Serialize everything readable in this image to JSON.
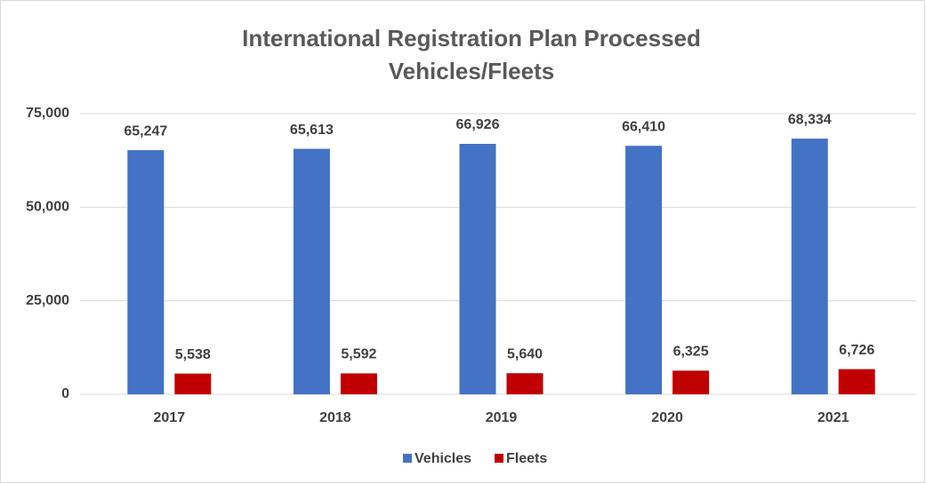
{
  "chart_data": {
    "type": "bar",
    "title": [
      "International Registration Plan Processed",
      "Vehicles/Fleets"
    ],
    "categories": [
      "2017",
      "2018",
      "2019",
      "2020",
      "2021"
    ],
    "series": [
      {
        "name": "Vehicles",
        "color": "#4472c4",
        "values": [
          65247,
          65613,
          66926,
          66410,
          68334
        ],
        "value_labels": [
          "65,247",
          "65,613",
          "66,926",
          "66,410",
          "68,334"
        ]
      },
      {
        "name": "Fleets",
        "color": "#c00000",
        "values": [
          5538,
          5592,
          5640,
          6325,
          6726
        ],
        "value_labels": [
          "5,538",
          "5,592",
          "5,640",
          "6,325",
          "6,726"
        ]
      }
    ],
    "ylim": [
      0,
      75000
    ],
    "yticks": [
      0,
      {
        "value": 25000,
        "label": "25,000"
      },
      {
        "value": 50000,
        "label": "50,000"
      },
      {
        "value": 75000,
        "label": "75,000"
      }
    ],
    "grid": true,
    "legend": "bottom"
  }
}
